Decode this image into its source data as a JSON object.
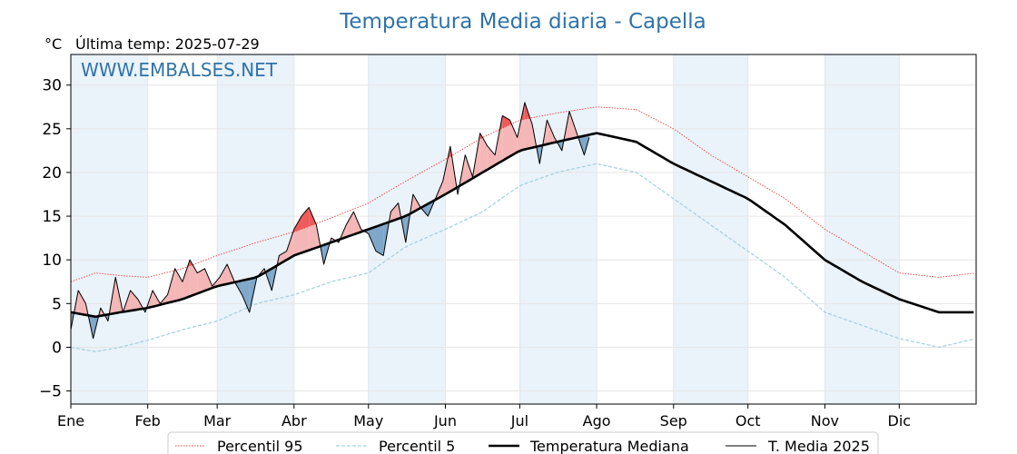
{
  "chart_data": {
    "type": "line",
    "title": "Temperatura Media diaria - Capella",
    "unit_label": "°C",
    "last_temp_label": "Última temp: 2025-07-29",
    "watermark": "WWW.EMBALSES.NET",
    "ylim": [
      -6.5,
      33.5
    ],
    "yticks": [
      -5,
      0,
      5,
      10,
      15,
      20,
      25,
      30
    ],
    "ytick_labels": [
      "−5",
      "0",
      "5",
      "10",
      "15",
      "20",
      "25",
      "30"
    ],
    "xlim": [
      0,
      365
    ],
    "months": [
      {
        "label": "Ene",
        "day": 0
      },
      {
        "label": "Feb",
        "day": 31
      },
      {
        "label": "Mar",
        "day": 59
      },
      {
        "label": "Abr",
        "day": 90
      },
      {
        "label": "May",
        "day": 120
      },
      {
        "label": "Jun",
        "day": 151
      },
      {
        "label": "Jul",
        "day": 181
      },
      {
        "label": "Ago",
        "day": 212
      },
      {
        "label": "Sep",
        "day": 243
      },
      {
        "label": "Oct",
        "day": 273
      },
      {
        "label": "Nov",
        "day": 304
      },
      {
        "label": "Dic",
        "day": 334
      }
    ],
    "grid": true,
    "legend_position": "bottom-center",
    "colors": {
      "p95": "#e8413a",
      "p5": "#a6d2e0",
      "median": "#000000",
      "t2025": "#000000",
      "above_fill": "#f4b6b6",
      "above_p95_fill": "#ef5a5a",
      "below_fill": "#7fa7c9",
      "shade": "#eaf2fa",
      "title": "#2f73a8"
    },
    "series": [
      {
        "name": "Percentil 95",
        "style": "dotted",
        "key_days": [
          0,
          10,
          20,
          31,
          45,
          59,
          75,
          90,
          105,
          120,
          135,
          151,
          166,
          181,
          196,
          212,
          228,
          243,
          258,
          273,
          288,
          304,
          319,
          334,
          350,
          365
        ],
        "key_values": [
          7.5,
          8.5,
          8.2,
          8.0,
          9.0,
          10.5,
          12.0,
          13.2,
          14.8,
          16.5,
          19.0,
          21.5,
          24.0,
          26.0,
          26.8,
          27.5,
          27.2,
          25.0,
          22.0,
          19.5,
          17.0,
          13.5,
          11.0,
          8.5,
          8.0,
          8.5
        ]
      },
      {
        "name": "Percentil 5",
        "style": "dashed",
        "key_days": [
          0,
          10,
          20,
          31,
          45,
          59,
          75,
          90,
          105,
          120,
          135,
          151,
          166,
          181,
          196,
          212,
          228,
          243,
          258,
          273,
          288,
          304,
          319,
          334,
          350,
          365
        ],
        "key_values": [
          0.0,
          -0.5,
          0.0,
          0.8,
          2.0,
          3.0,
          5.0,
          6.0,
          7.5,
          8.5,
          11.5,
          13.5,
          15.5,
          18.5,
          20.0,
          21.0,
          20.0,
          17.0,
          14.0,
          11.0,
          8.0,
          4.0,
          2.5,
          1.0,
          0.0,
          1.0
        ]
      },
      {
        "name": "Temperatura Mediana",
        "style": "solid-thick",
        "key_days": [
          0,
          10,
          20,
          31,
          45,
          59,
          75,
          90,
          105,
          120,
          135,
          151,
          166,
          181,
          196,
          212,
          228,
          243,
          258,
          273,
          288,
          304,
          319,
          334,
          350,
          365
        ],
        "key_values": [
          4.0,
          3.5,
          4.0,
          4.5,
          5.5,
          7.0,
          8.0,
          10.5,
          12.0,
          13.5,
          15.0,
          17.5,
          20.0,
          22.5,
          23.5,
          24.5,
          23.5,
          21.0,
          19.0,
          17.0,
          14.0,
          10.0,
          7.5,
          5.5,
          4.0,
          4.0
        ]
      },
      {
        "name": "T. Media 2025",
        "style": "solid-thin",
        "days": [
          0,
          3,
          6,
          9,
          12,
          15,
          18,
          21,
          24,
          27,
          30,
          33,
          36,
          39,
          42,
          45,
          48,
          51,
          54,
          57,
          60,
          63,
          66,
          69,
          72,
          75,
          78,
          81,
          84,
          87,
          90,
          93,
          96,
          99,
          102,
          105,
          108,
          111,
          114,
          117,
          120,
          123,
          126,
          129,
          132,
          135,
          138,
          141,
          144,
          147,
          150,
          153,
          156,
          159,
          162,
          165,
          168,
          171,
          174,
          177,
          180,
          183,
          186,
          189,
          192,
          195,
          198,
          201,
          204,
          207,
          209
        ],
        "values": [
          2.0,
          6.5,
          5.0,
          1.0,
          4.5,
          3.0,
          8.0,
          4.0,
          6.5,
          5.5,
          4.0,
          6.5,
          5.0,
          6.0,
          9.0,
          7.5,
          10.0,
          8.5,
          9.0,
          7.0,
          8.0,
          9.5,
          7.5,
          6.0,
          4.0,
          8.0,
          9.0,
          6.5,
          10.5,
          11.0,
          13.5,
          15.0,
          16.0,
          14.0,
          9.5,
          12.5,
          12.0,
          14.0,
          15.5,
          13.5,
          13.0,
          11.0,
          10.5,
          15.5,
          16.5,
          12.0,
          17.5,
          16.0,
          15.0,
          17.0,
          19.0,
          23.0,
          17.5,
          22.0,
          19.5,
          24.5,
          23.0,
          22.0,
          26.5,
          26.0,
          24.0,
          28.0,
          25.5,
          21.0,
          26.0,
          24.0,
          22.5,
          27.0,
          24.5,
          22.0,
          24.0
        ]
      }
    ]
  }
}
